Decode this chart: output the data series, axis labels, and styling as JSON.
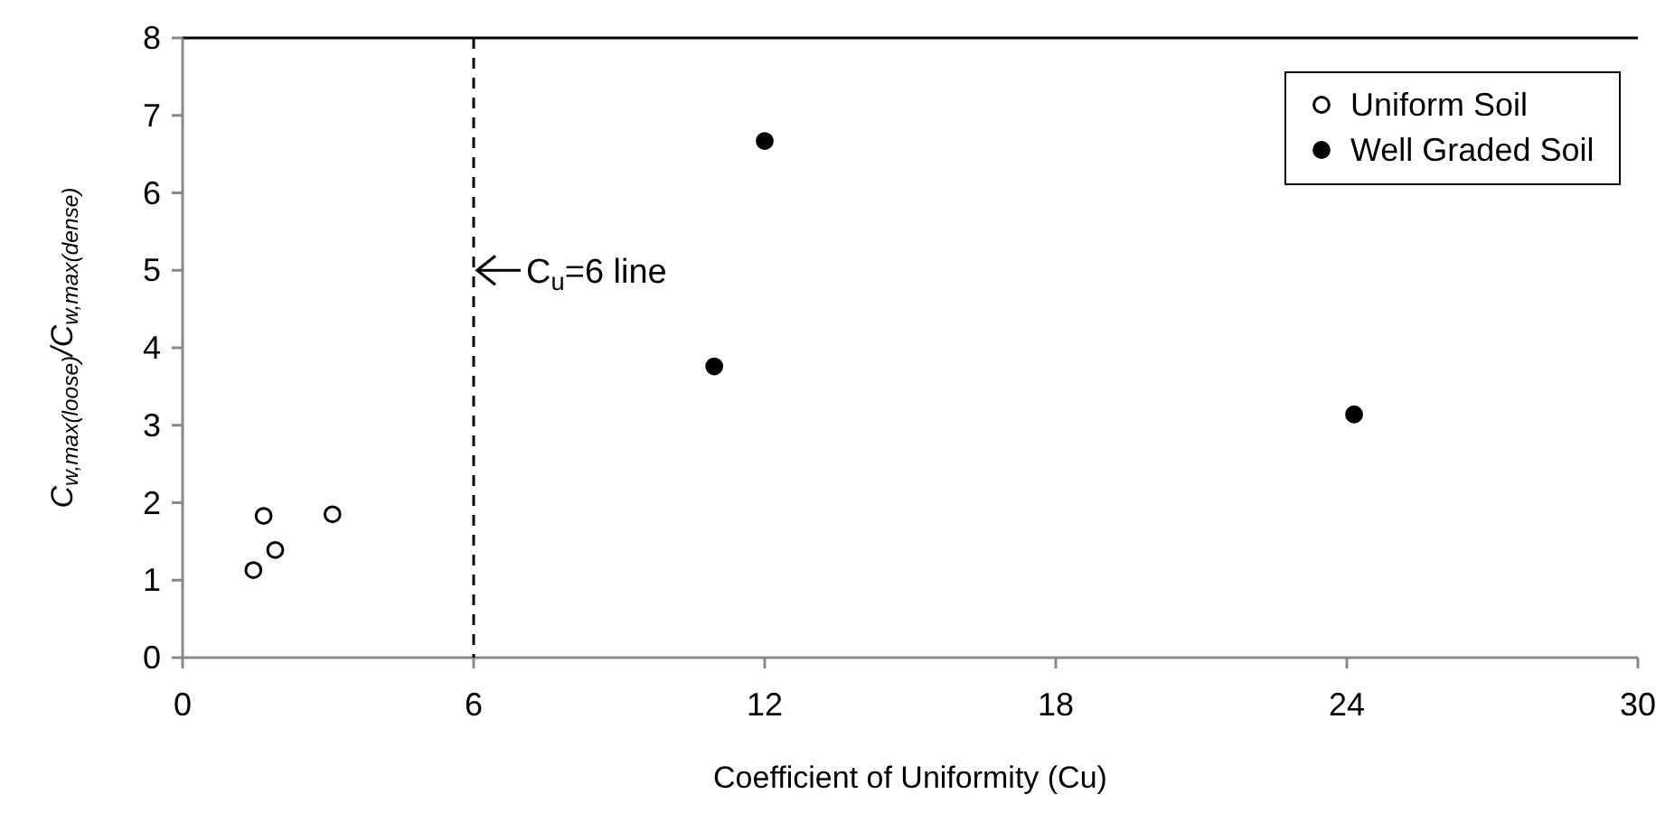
{
  "chart_data": {
    "type": "scatter",
    "xlabel": "Coefficient of Uniformity (Cu)",
    "ylabel": "C$_{w,max(loose)}$/C$_{w,max(dense)}$",
    "xlim": [
      0,
      30
    ],
    "xticks": [
      0,
      6,
      12,
      18,
      24,
      30
    ],
    "ylim": [
      0,
      8
    ],
    "yticks": [
      0,
      1,
      2,
      3,
      4,
      5,
      6,
      7,
      8
    ],
    "series": [
      {
        "name": "Uniform Soil",
        "color": "#ffffff",
        "x": [
          1.46,
          1.67,
          1.91,
          3.09
        ],
        "values": [
          1.13,
          1.83,
          1.39,
          1.85
        ]
      },
      {
        "name": "Well Graded Soil",
        "color": "#000000",
        "x": [
          10.96,
          12.0,
          24.15
        ],
        "values": [
          3.76,
          6.67,
          3.14
        ]
      }
    ],
    "marker": "circle",
    "grid": false,
    "legend": "top right",
    "ref_lines": [
      {
        "axis": "x",
        "value": 6,
        "line_style": "dashed",
        "color": "#000000"
      }
    ],
    "annotations": [
      {
        "text": "C$_{u}$=6 line",
        "x": 6,
        "y": 5
      }
    ]
  }
}
